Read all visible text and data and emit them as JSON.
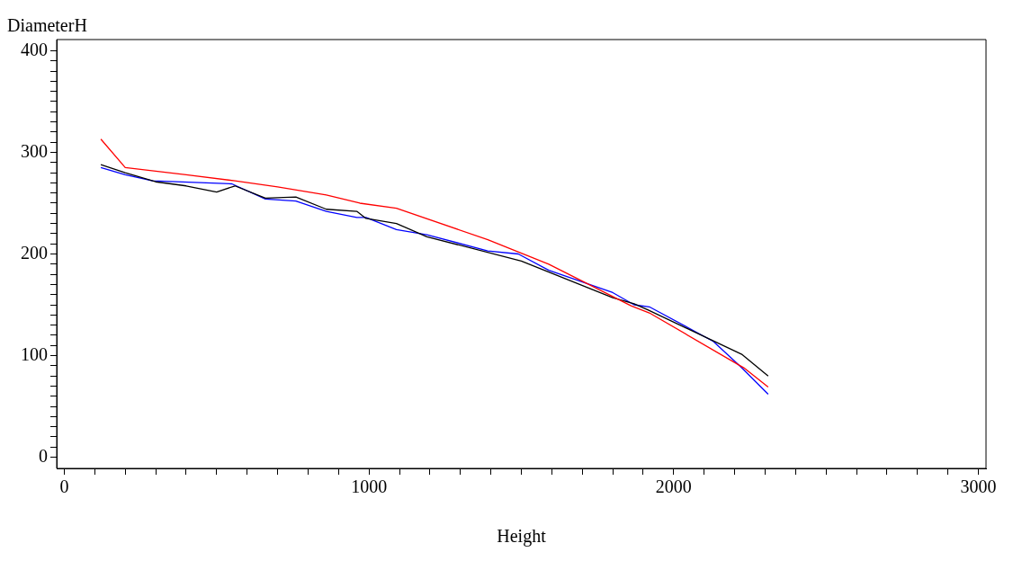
{
  "chart_data": {
    "type": "line",
    "xlabel": "Height",
    "ylabel": "DiameterH",
    "xlim": [
      -25,
      3025
    ],
    "ylim": [
      -11,
      411
    ],
    "xticks": [
      0,
      {
        "value": 100,
        "label": null
      },
      {
        "value": 200,
        "label": null
      },
      {
        "value": 300,
        "label": null
      },
      {
        "value": 400,
        "label": null
      },
      {
        "value": 500,
        "label": null
      },
      {
        "value": 600,
        "label": null
      },
      {
        "value": 700,
        "label": null
      },
      {
        "value": 800,
        "label": null
      },
      {
        "value": 900,
        "label": null
      },
      1000,
      {
        "value": 1100,
        "label": null
      },
      {
        "value": 1200,
        "label": null
      },
      {
        "value": 1300,
        "label": null
      },
      {
        "value": 1400,
        "label": null
      },
      {
        "value": 1500,
        "label": null
      },
      {
        "value": 1600,
        "label": null
      },
      {
        "value": 1700,
        "label": null
      },
      {
        "value": 1800,
        "label": null
      },
      {
        "value": 1900,
        "label": null
      },
      2000,
      {
        "value": 2100,
        "label": null
      },
      {
        "value": 2200,
        "label": null
      },
      {
        "value": 2300,
        "label": null
      },
      {
        "value": 2400,
        "label": null
      },
      {
        "value": 2500,
        "label": null
      },
      {
        "value": 2600,
        "label": null
      },
      {
        "value": 2700,
        "label": null
      },
      {
        "value": 2800,
        "label": null
      },
      {
        "value": 2900,
        "label": null
      },
      3000
    ],
    "yticks": [
      0,
      {
        "value": 10,
        "label": null
      },
      {
        "value": 20,
        "label": null
      },
      {
        "value": 30,
        "label": null
      },
      {
        "value": 40,
        "label": null
      },
      {
        "value": 50,
        "label": null
      },
      {
        "value": 60,
        "label": null
      },
      {
        "value": 70,
        "label": null
      },
      {
        "value": 80,
        "label": null
      },
      {
        "value": 90,
        "label": null
      },
      100,
      {
        "value": 110,
        "label": null
      },
      {
        "value": 120,
        "label": null
      },
      {
        "value": 130,
        "label": null
      },
      {
        "value": 140,
        "label": null
      },
      {
        "value": 150,
        "label": null
      },
      {
        "value": 160,
        "label": null
      },
      {
        "value": 170,
        "label": null
      },
      {
        "value": 180,
        "label": null
      },
      {
        "value": 190,
        "label": null
      },
      200,
      {
        "value": 210,
        "label": null
      },
      {
        "value": 220,
        "label": null
      },
      {
        "value": 230,
        "label": null
      },
      {
        "value": 240,
        "label": null
      },
      {
        "value": 250,
        "label": null
      },
      {
        "value": 260,
        "label": null
      },
      {
        "value": 270,
        "label": null
      },
      {
        "value": 280,
        "label": null
      },
      {
        "value": 290,
        "label": null
      },
      300,
      {
        "value": 310,
        "label": null
      },
      {
        "value": 320,
        "label": null
      },
      {
        "value": 330,
        "label": null
      },
      {
        "value": 340,
        "label": null
      },
      {
        "value": 350,
        "label": null
      },
      {
        "value": 360,
        "label": null
      },
      {
        "value": 370,
        "label": null
      },
      {
        "value": 380,
        "label": null
      },
      {
        "value": 390,
        "label": null
      },
      400
    ],
    "grid": false,
    "legend": false,
    "marker": "none",
    "line_style": "solid",
    "series": [
      {
        "color": "#ff0000",
        "x": [
          120,
          200,
          400,
          560,
          700,
          860,
          970,
          1090,
          1390,
          1590,
          1860,
          1920,
          2230,
          2310
        ],
        "values": [
          313,
          285,
          278,
          272,
          266,
          258,
          250,
          245,
          214,
          190,
          149,
          142,
          88,
          69
        ]
      },
      {
        "color": "#000000",
        "x": [
          120,
          200,
          300,
          400,
          500,
          560,
          660,
          760,
          860,
          960,
          990,
          1090,
          1190,
          1500,
          1800,
          1870,
          1915,
          2225,
          2310
        ],
        "values": [
          288,
          280,
          271,
          267,
          261,
          267,
          255,
          256,
          244,
          242,
          235,
          230,
          217,
          193,
          157,
          151,
          145,
          101,
          80
        ]
      },
      {
        "color": "#0000ff",
        "x": [
          120,
          200,
          290,
          550,
          660,
          760,
          860,
          960,
          990,
          1090,
          1190,
          1390,
          1490,
          1590,
          1800,
          1870,
          1920,
          2130,
          2220,
          2310
        ],
        "values": [
          285,
          278,
          272,
          269,
          254,
          252,
          242,
          236,
          236,
          224,
          219,
          203,
          200,
          184,
          162,
          150,
          148,
          114,
          89,
          62
        ]
      }
    ]
  }
}
